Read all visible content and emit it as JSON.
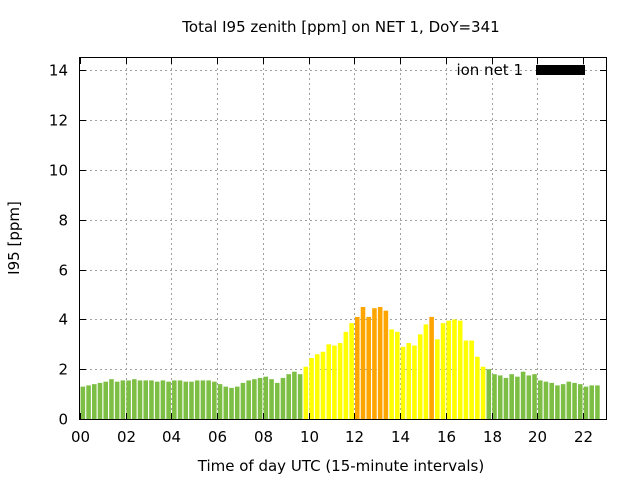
{
  "chart_data": {
    "type": "bar",
    "title": "Total I95 zenith [ppm] on NET 1, DoY=341",
    "xlabel": "Time of day UTC (15-minute intervals)",
    "ylabel": "I95 [ppm]",
    "ylim": [
      0,
      14.5
    ],
    "yticks": [
      "0",
      "2",
      "4",
      "6",
      "8",
      "10",
      "12",
      "14"
    ],
    "xlim": [
      0,
      23
    ],
    "xticks": [
      "00",
      "02",
      "04",
      "06",
      "08",
      "10",
      "12",
      "14",
      "16",
      "18",
      "20",
      "22"
    ],
    "grid": true,
    "legend": {
      "position": "top-right",
      "label": "ion net 1",
      "color": "#000000"
    },
    "colors": {
      "low": "#7dbf44",
      "medium": "#ffff00",
      "high": "#ffa500"
    },
    "x_step_hours": 0.25,
    "values": [
      1.3,
      1.35,
      1.4,
      1.45,
      1.5,
      1.6,
      1.5,
      1.55,
      1.55,
      1.6,
      1.55,
      1.55,
      1.55,
      1.5,
      1.55,
      1.5,
      1.55,
      1.55,
      1.5,
      1.5,
      1.55,
      1.55,
      1.55,
      1.5,
      1.4,
      1.3,
      1.25,
      1.3,
      1.45,
      1.55,
      1.6,
      1.65,
      1.7,
      1.6,
      1.45,
      1.65,
      1.8,
      1.9,
      1.8,
      2.1,
      2.45,
      2.6,
      2.7,
      3.0,
      2.95,
      3.05,
      3.5,
      3.85,
      4.1,
      4.5,
      4.1,
      4.45,
      4.5,
      4.35,
      3.6,
      3.5,
      2.9,
      3.05,
      2.95,
      3.4,
      3.8,
      4.1,
      3.2,
      3.85,
      3.95,
      4.0,
      3.95,
      3.15,
      3.15,
      2.5,
      2.1,
      2.0,
      1.8,
      1.75,
      1.65,
      1.8,
      1.7,
      1.9,
      1.75,
      1.8,
      1.55,
      1.5,
      1.45,
      1.35,
      1.4,
      1.5,
      1.45,
      1.4,
      1.3,
      1.35,
      1.35
    ],
    "levels": [
      "low",
      "low",
      "low",
      "low",
      "low",
      "low",
      "low",
      "low",
      "low",
      "low",
      "low",
      "low",
      "low",
      "low",
      "low",
      "low",
      "low",
      "low",
      "low",
      "low",
      "low",
      "low",
      "low",
      "low",
      "low",
      "low",
      "low",
      "low",
      "low",
      "low",
      "low",
      "low",
      "low",
      "low",
      "low",
      "low",
      "low",
      "low",
      "low",
      "medium",
      "medium",
      "medium",
      "medium",
      "medium",
      "medium",
      "medium",
      "medium",
      "medium",
      "high",
      "high",
      "high",
      "high",
      "high",
      "high",
      "medium",
      "medium",
      "medium",
      "medium",
      "medium",
      "medium",
      "medium",
      "high",
      "medium",
      "medium",
      "medium",
      "medium",
      "medium",
      "medium",
      "medium",
      "medium",
      "medium",
      "low",
      "low",
      "low",
      "low",
      "low",
      "low",
      "low",
      "low",
      "low",
      "low",
      "low",
      "low",
      "low",
      "low",
      "low",
      "low",
      "low",
      "low",
      "low",
      "low"
    ]
  }
}
